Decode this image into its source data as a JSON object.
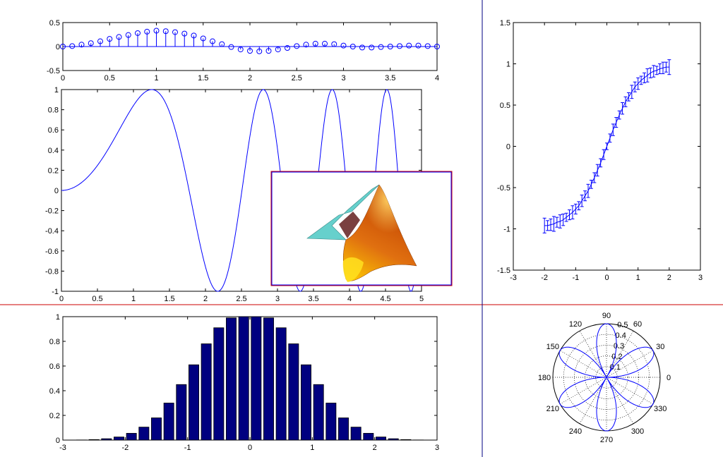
{
  "colors": {
    "background": "#ffffff",
    "line": "#0000ff",
    "bar_fill": "#000080",
    "divider": "#cc0000",
    "inset_border": "#cc0000",
    "inset_axes_border": "#0000ff",
    "surface_low": "#ffd000",
    "surface_high": "#c04000",
    "surface_edge": "#66d0cc"
  },
  "chart_data": [
    {
      "id": "stem",
      "type": "scatter",
      "style": "stem",
      "xlim": [
        0,
        4
      ],
      "ylim": [
        -0.5,
        0.5
      ],
      "xticks": [
        "0",
        "0.5",
        "1",
        "1.5",
        "2",
        "2.5",
        "3",
        "3.5",
        "4"
      ],
      "yticks": [
        "-0.5",
        "0",
        "0.5"
      ],
      "x": [
        0,
        0.1,
        0.2,
        0.3,
        0.4,
        0.5,
        0.6,
        0.7,
        0.8,
        0.9,
        1.0,
        1.1,
        1.2,
        1.3,
        1.4,
        1.5,
        1.6,
        1.7,
        1.8,
        1.9,
        2.0,
        2.1,
        2.2,
        2.3,
        2.4,
        2.5,
        2.6,
        2.7,
        2.8,
        2.9,
        3.0,
        3.1,
        3.2,
        3.3,
        3.4,
        3.5,
        3.6,
        3.7,
        3.8,
        3.9,
        4.0
      ],
      "y": [
        0,
        0.01,
        0.04,
        0.07,
        0.11,
        0.16,
        0.2,
        0.24,
        0.28,
        0.31,
        0.33,
        0.32,
        0.3,
        0.27,
        0.23,
        0.17,
        0.11,
        0.05,
        -0.01,
        -0.06,
        -0.09,
        -0.1,
        -0.09,
        -0.06,
        -0.03,
        0.01,
        0.04,
        0.06,
        0.06,
        0.05,
        0.02,
        0,
        -0.02,
        -0.02,
        -0.01,
        0,
        0.01,
        0.02,
        0.02,
        0.01,
        0
      ]
    },
    {
      "id": "line",
      "type": "line",
      "function": "sin(x^2)",
      "xlim": [
        0,
        5
      ],
      "ylim": [
        -1,
        1
      ],
      "xticks": [
        "0",
        "0.5",
        "1",
        "1.5",
        "2",
        "2.5",
        "3",
        "3.5",
        "4",
        "4.5",
        "5"
      ],
      "yticks": [
        "-1",
        "-0.8",
        "-0.6",
        "-0.4",
        "-0.2",
        "0",
        "0.2",
        "0.4",
        "0.6",
        "0.8",
        "1"
      ]
    },
    {
      "id": "errorbar",
      "type": "line",
      "style": "errorbar",
      "xlim": [
        -3,
        3
      ],
      "ylim": [
        -1.5,
        1.5
      ],
      "xticks": [
        "-3",
        "-2",
        "-1",
        "0",
        "1",
        "2",
        "3"
      ],
      "yticks": [
        "-1.5",
        "-1",
        "-0.5",
        "0",
        "0.5",
        "1",
        "1.5"
      ],
      "x": [
        -2,
        -1.9,
        -1.8,
        -1.7,
        -1.6,
        -1.5,
        -1.4,
        -1.3,
        -1.2,
        -1.1,
        -1.0,
        -0.9,
        -0.8,
        -0.7,
        -0.6,
        -0.5,
        -0.4,
        -0.3,
        -0.2,
        -0.1,
        0,
        0.1,
        0.2,
        0.3,
        0.4,
        0.5,
        0.6,
        0.7,
        0.8,
        0.9,
        1.0,
        1.1,
        1.2,
        1.3,
        1.4,
        1.5,
        1.6,
        1.7,
        1.8,
        1.9,
        2.0
      ],
      "y": [
        -0.96,
        -0.96,
        -0.95,
        -0.94,
        -0.92,
        -0.91,
        -0.89,
        -0.86,
        -0.83,
        -0.8,
        -0.76,
        -0.72,
        -0.66,
        -0.6,
        -0.54,
        -0.46,
        -0.38,
        -0.29,
        -0.2,
        -0.1,
        0,
        0.1,
        0.2,
        0.29,
        0.38,
        0.46,
        0.54,
        0.6,
        0.66,
        0.72,
        0.76,
        0.8,
        0.83,
        0.86,
        0.89,
        0.91,
        0.92,
        0.94,
        0.95,
        0.96,
        0.96
      ],
      "err": [
        0.09,
        0.06,
        0.07,
        0.09,
        0.06,
        0.08,
        0.07,
        0.05,
        0.06,
        0.08,
        0.06,
        0.05,
        0.07,
        0.06,
        0.08,
        0.05,
        0.06,
        0.07,
        0.05,
        0.06,
        0.04,
        0.05,
        0.07,
        0.06,
        0.05,
        0.07,
        0.06,
        0.05,
        0.08,
        0.06,
        0.07,
        0.05,
        0.06,
        0.08,
        0.06,
        0.07,
        0.05,
        0.06,
        0.07,
        0.06,
        0.09
      ]
    },
    {
      "id": "bar",
      "type": "bar",
      "xlim": [
        -3,
        3
      ],
      "ylim": [
        0,
        1
      ],
      "xticks": [
        "-3",
        "-2",
        "-1",
        "0",
        "1",
        "2",
        "3"
      ],
      "yticks": [
        "0",
        "0.2",
        "0.4",
        "0.6",
        "0.8",
        "1"
      ],
      "x": [
        -2.9,
        -2.7,
        -2.5,
        -2.3,
        -2.1,
        -1.9,
        -1.7,
        -1.5,
        -1.3,
        -1.1,
        -0.9,
        -0.7,
        -0.5,
        -0.3,
        -0.1,
        0.1,
        0.3,
        0.5,
        0.7,
        0.9,
        1.1,
        1.3,
        1.5,
        1.7,
        1.9,
        2.1,
        2.3,
        2.5,
        2.7,
        2.9
      ],
      "values": [
        0,
        0.001,
        0.004,
        0.011,
        0.025,
        0.055,
        0.105,
        0.18,
        0.3,
        0.45,
        0.61,
        0.78,
        0.91,
        0.99,
        1.0,
        1.0,
        0.99,
        0.91,
        0.78,
        0.61,
        0.45,
        0.3,
        0.18,
        0.105,
        0.055,
        0.025,
        0.011,
        0.004,
        0.001,
        0
      ]
    },
    {
      "id": "polar",
      "type": "line",
      "style": "polar",
      "function": "r = 0.5 * |sin(3θ)|",
      "rmax": 0.5,
      "angle_labels": [
        "0",
        "30",
        "60",
        "90",
        "120",
        "150",
        "180",
        "210",
        "240",
        "270",
        "300",
        "330"
      ],
      "radius_labels": [
        "0.1",
        "0.2",
        "0.3",
        "0.4",
        "0.5"
      ]
    }
  ]
}
